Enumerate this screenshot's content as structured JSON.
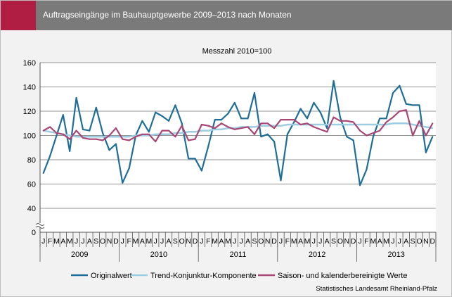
{
  "header": {
    "title": "Auftragseingänge im Bauhauptgewerbe 2009–2013 nach Monaten",
    "accent_color": "#b01e44",
    "bar_color": "#7a7a7a"
  },
  "source": "Statistisches Landesamt Rheinland-Pfalz",
  "chart_data": {
    "type": "line",
    "title": "",
    "subtitle": "Messzahl 2010=100",
    "xlabel": "",
    "ylabel": "",
    "ylim": [
      0,
      160
    ],
    "yticks": [
      0,
      40,
      60,
      80,
      100,
      120,
      140,
      160
    ],
    "y_axis_break": true,
    "grid": true,
    "legend_position": "bottom",
    "years": [
      "2009",
      "2010",
      "2011",
      "2012",
      "2013"
    ],
    "month_labels": [
      "J",
      "F",
      "M",
      "A",
      "M",
      "J",
      "J",
      "A",
      "S",
      "O",
      "N",
      "D"
    ],
    "x": [
      "2009-01",
      "2009-02",
      "2009-03",
      "2009-04",
      "2009-05",
      "2009-06",
      "2009-07",
      "2009-08",
      "2009-09",
      "2009-10",
      "2009-11",
      "2009-12",
      "2010-01",
      "2010-02",
      "2010-03",
      "2010-04",
      "2010-05",
      "2010-06",
      "2010-07",
      "2010-08",
      "2010-09",
      "2010-10",
      "2010-11",
      "2010-12",
      "2011-01",
      "2011-02",
      "2011-03",
      "2011-04",
      "2011-05",
      "2011-06",
      "2011-07",
      "2011-08",
      "2011-09",
      "2011-10",
      "2011-11",
      "2011-12",
      "2012-01",
      "2012-02",
      "2012-03",
      "2012-04",
      "2012-05",
      "2012-06",
      "2012-07",
      "2012-08",
      "2012-09",
      "2012-10",
      "2012-11",
      "2012-12",
      "2013-01",
      "2013-02",
      "2013-03",
      "2013-04",
      "2013-05",
      "2013-06",
      "2013-07",
      "2013-08",
      "2013-09",
      "2013-10",
      "2013-11",
      "2013-12"
    ],
    "series": [
      {
        "name": "Originalwert",
        "color": "#1f6e97",
        "values": [
          69,
          83,
          100,
          117,
          87,
          131,
          105,
          104,
          123,
          102,
          88,
          93,
          61,
          73,
          100,
          112,
          103,
          119,
          116,
          112,
          125,
          110,
          81,
          81,
          71,
          91,
          113,
          113,
          118,
          127,
          114,
          114,
          135,
          99,
          101,
          95,
          63,
          101,
          111,
          122,
          114,
          127,
          119,
          106,
          145,
          115,
          99,
          96,
          59,
          72,
          99,
          114,
          114,
          135,
          141,
          126,
          125,
          125,
          86,
          99
        ]
      },
      {
        "name": "Trend-Konjunktur-Komponente",
        "color": "#9dcde0",
        "values": [
          104,
          103,
          102,
          101,
          100,
          99,
          99,
          99,
          99,
          99,
          99,
          99,
          99,
          99,
          100,
          100,
          100,
          101,
          101,
          101,
          102,
          102,
          103,
          103,
          104,
          104,
          105,
          105,
          106,
          106,
          107,
          107,
          107,
          108,
          108,
          108,
          108,
          109,
          109,
          109,
          109,
          109,
          109,
          109,
          109,
          109,
          109,
          109,
          109,
          109,
          109,
          109,
          109,
          110,
          110,
          110,
          109,
          108,
          107,
          106
        ]
      },
      {
        "name": "Saison- und kalenderbereinigte Werte",
        "color": "#a84676",
        "values": [
          104,
          107,
          102,
          101,
          97,
          104,
          98,
          97,
          97,
          96,
          100,
          106,
          97,
          96,
          99,
          101,
          101,
          95,
          104,
          104,
          99,
          108,
          96,
          97,
          109,
          108,
          106,
          110,
          107,
          105,
          106,
          107,
          101,
          110,
          110,
          106,
          113,
          113,
          113,
          109,
          110,
          107,
          105,
          103,
          115,
          112,
          112,
          111,
          104,
          100,
          102,
          104,
          111,
          115,
          120,
          121,
          100,
          112,
          100,
          110
        ]
      }
    ]
  }
}
